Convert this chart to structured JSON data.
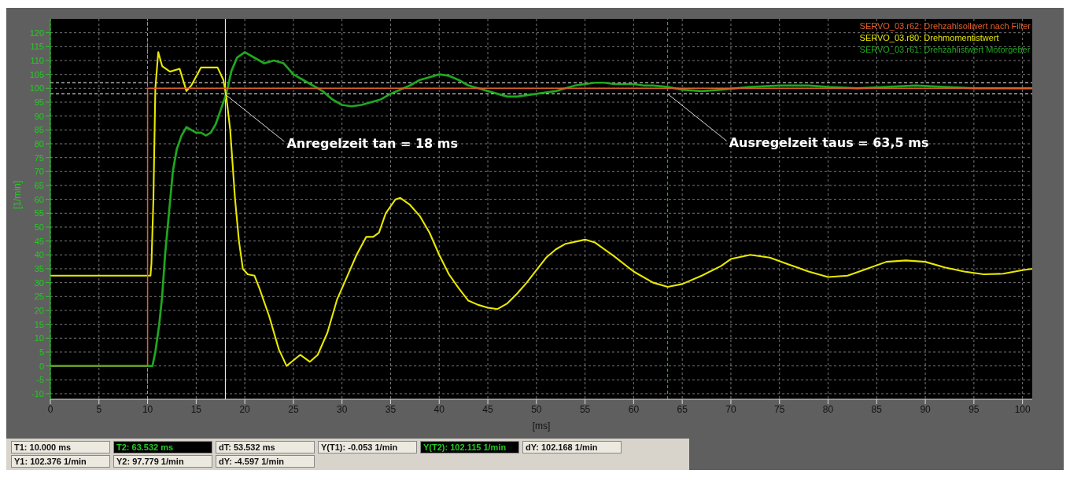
{
  "chart_data": {
    "type": "line",
    "xlabel": "[ms]",
    "ylabel": "[1/min]",
    "xlim": [
      0,
      101
    ],
    "ylim": [
      -12,
      125
    ],
    "xticks": [
      0,
      5,
      10,
      15,
      20,
      25,
      30,
      35,
      40,
      45,
      50,
      55,
      60,
      65,
      70,
      75,
      80,
      85,
      90,
      95,
      100
    ],
    "yticks": [
      -10,
      -5,
      0,
      5,
      10,
      15,
      20,
      25,
      30,
      35,
      40,
      45,
      50,
      55,
      60,
      65,
      70,
      75,
      80,
      85,
      90,
      95,
      100,
      105,
      110,
      115,
      120
    ],
    "grid": true,
    "legend": "top right",
    "marker": "none",
    "line_style": "solid",
    "series": [
      {
        "name": "SERVO_03.r62: Drehzahlsollwert nach Filter",
        "color": "#e0602a",
        "x": [
          0,
          10,
          10,
          101
        ],
        "values": [
          0,
          0,
          100,
          100
        ]
      },
      {
        "name": "SERVO_03.r80: Drehmomentistwert",
        "color": "#e8e800",
        "x": [
          0,
          10.3,
          10.4,
          10.6,
          10.8,
          11.1,
          11.5,
          12.3,
          13.3,
          14,
          14.5,
          15.5,
          17.2,
          17.8,
          18.1,
          18.5,
          19,
          19.4,
          19.8,
          20.3,
          21,
          21.5,
          22.5,
          23.5,
          24.3,
          25,
          25.7,
          26.7,
          27.5,
          28.5,
          29.5,
          30.5,
          31.5,
          32.5,
          33.2,
          33.8,
          34.5,
          35.5,
          36,
          37,
          38,
          39,
          40,
          41,
          42,
          43,
          44,
          45,
          46,
          47,
          48,
          49,
          50,
          51,
          52,
          53,
          55,
          56,
          58,
          60,
          62,
          63.5,
          65,
          67,
          69,
          70,
          72,
          74,
          76,
          78,
          80,
          82,
          84,
          86,
          88,
          90,
          92,
          94,
          96,
          98,
          100,
          101
        ],
        "values": [
          32.5,
          32.5,
          37,
          60,
          100,
          113,
          108,
          106,
          107,
          99,
          101,
          107.5,
          107.5,
          103,
          97,
          85,
          60,
          45,
          35,
          33,
          32.5,
          28,
          18,
          6,
          0,
          2,
          4,
          1.5,
          4,
          12,
          24,
          32,
          40,
          46.5,
          46.5,
          48,
          55,
          60,
          60.5,
          58,
          54,
          48,
          40,
          33,
          28,
          23.5,
          22,
          21,
          20.5,
          22.5,
          26,
          30,
          34.5,
          39,
          42,
          44,
          45.5,
          44.5,
          39.5,
          34,
          30,
          28.5,
          29.5,
          32.5,
          36,
          38.5,
          40,
          39,
          36.5,
          34,
          32,
          32.5,
          35,
          37.5,
          38,
          37.5,
          35.5,
          34,
          33,
          33.2,
          34.5,
          35
        ]
      },
      {
        "name": "SERVO_03.r61: Drehzahlistwert Motorgeber",
        "color": "#1ea81e",
        "x": [
          0,
          10.5,
          10.8,
          11.2,
          11.5,
          11.8,
          12.2,
          12.6,
          13,
          13.5,
          14,
          14.5,
          15,
          15.5,
          16,
          16.5,
          17,
          17.5,
          18,
          18.3,
          18.6,
          19.2,
          20,
          21,
          22,
          23,
          24,
          25,
          26,
          27,
          28,
          29,
          30,
          31,
          32,
          33,
          34,
          35,
          36,
          37,
          38,
          39,
          40,
          41,
          42,
          43,
          44,
          45,
          46,
          47,
          48,
          49,
          50,
          51,
          52,
          53,
          54,
          55,
          56,
          57,
          58,
          59,
          60,
          61,
          62,
          63.5,
          65,
          67,
          69,
          72,
          75,
          78,
          80,
          83,
          86,
          89,
          92,
          95,
          98,
          101
        ],
        "values": [
          0,
          0,
          5,
          15,
          25,
          40,
          55,
          70,
          78,
          83,
          86,
          85,
          84,
          84,
          83,
          84,
          87,
          92,
          97,
          101,
          106,
          111,
          113,
          111,
          109,
          110,
          109,
          105,
          103,
          101,
          99,
          96,
          94,
          93.5,
          94,
          95,
          96,
          98,
          99.5,
          101,
          103,
          104,
          105,
          104.5,
          103,
          101,
          100,
          99,
          98,
          97,
          97,
          97.5,
          98,
          98.5,
          99,
          100,
          101,
          101.5,
          102,
          102,
          101.5,
          101.5,
          101.5,
          101,
          101,
          100.5,
          99.5,
          99,
          99.5,
          100.5,
          101,
          101,
          100.5,
          100,
          100.5,
          101,
          100.5,
          100,
          100,
          100
        ]
      }
    ],
    "ref_lines": [
      {
        "axis": "y",
        "value": 102,
        "color": "#ffffff",
        "line_style": "dashed"
      },
      {
        "axis": "y",
        "value": 98,
        "color": "#ffffff",
        "line_style": "dashed"
      },
      {
        "axis": "x",
        "value": 10,
        "color": "#8899dd",
        "line_style": "dashed"
      },
      {
        "axis": "x",
        "value": 18,
        "color": "#ffffff",
        "line_style": "solid"
      },
      {
        "axis": "x",
        "value": 63.5,
        "color": "#22cc22",
        "line_style": "dashed"
      }
    ],
    "annotations": [
      {
        "text": "Anregelzeit tan = 18 ms",
        "x": 18,
        "y": 97.8
      },
      {
        "text": "Ausregelzeit taus = 63,5 ms",
        "x": 63.5,
        "y": 98
      },
      "T1: 10.000 ms",
      "T2: 63.532 ms",
      "dT: 53.532 ms",
      "Y(T1):  -0.053 1/min",
      "Y(T2): 102.115 1/min",
      "dY: 102.168 1/min",
      "Y1: 102.376 1/min",
      "Y2: 97.779 1/min",
      "dY: -4.597 1/min"
    ]
  }
}
